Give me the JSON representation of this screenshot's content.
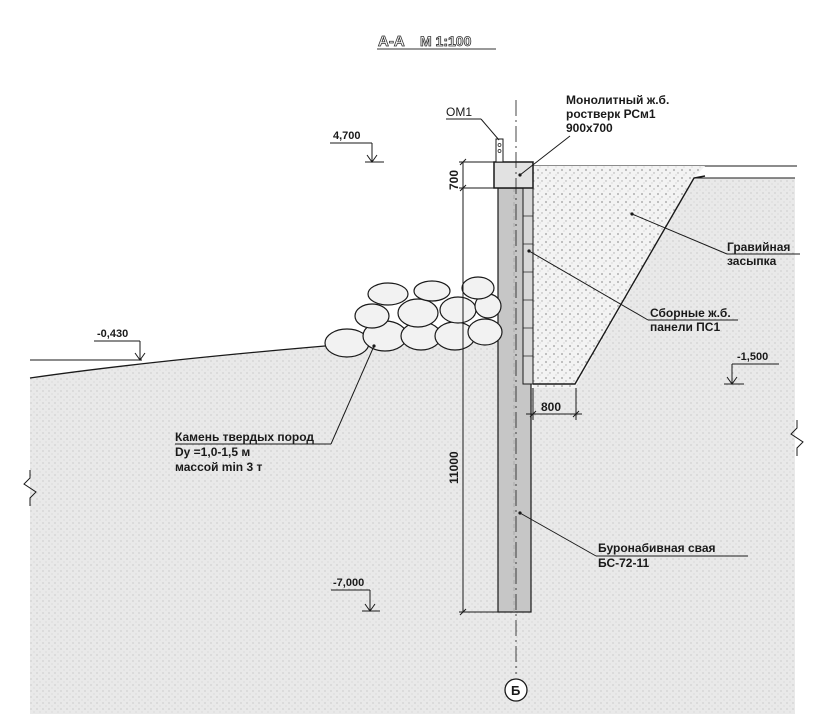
{
  "title": {
    "section": "А-А",
    "scale": "М 1:100"
  },
  "elevations": {
    "top": "4,700",
    "ground_left": "-0,430",
    "right": "-1,500",
    "pile_bottom": "-7,000"
  },
  "dimensions": {
    "grillage_height": "700",
    "pile_length": "11000",
    "backfill_width": "800"
  },
  "labels": {
    "om1": "ОМ1",
    "grillage": [
      "Монолитный ж.б.",
      "ростверк РСм1",
      "900х700"
    ],
    "gravel": [
      "Гравийная",
      "засыпка"
    ],
    "panels": [
      "Сборные ж.б.",
      "панели ПС1"
    ],
    "stone": [
      "Камень твердых пород",
      "Dy =1,0-1,5 м",
      "массой min 3 т"
    ],
    "pile": [
      "Буронабивная свая",
      "БС-72-11"
    ]
  },
  "axis": {
    "label": "Б"
  },
  "colors": {
    "line": "#1a1a1a",
    "ground": "#e6e6e6",
    "gravel": "#f1f1f1",
    "pile": "#c8c8c8"
  }
}
